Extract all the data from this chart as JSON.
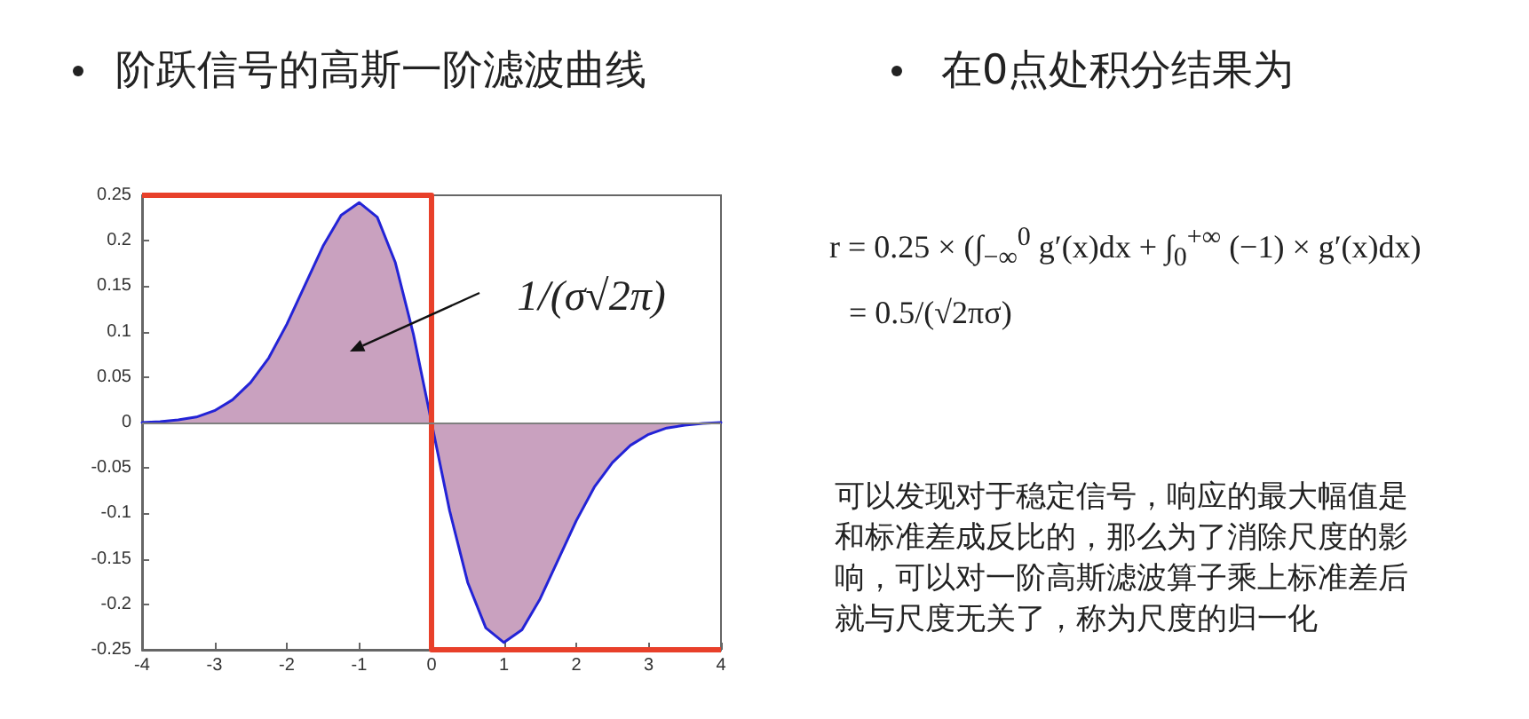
{
  "chart_data": {
    "type": "line",
    "title": "阶跃信号的高斯一阶滤波曲线",
    "subtitle": "在0点处积分结果为",
    "x": [
      -4,
      -3.75,
      -3.5,
      -3.25,
      -3,
      -2.75,
      -2.5,
      -2.25,
      -2,
      -1.75,
      -1.5,
      -1.25,
      -1,
      -0.75,
      -0.5,
      -0.25,
      0,
      0.25,
      0.5,
      0.75,
      1,
      1.25,
      1.5,
      1.75,
      2,
      2.25,
      2.5,
      2.75,
      3,
      3.25,
      3.5,
      3.75,
      4
    ],
    "series": [
      {
        "type": "area",
        "color": "#c9a1bf",
        "x": [
          -4,
          -3.75,
          -3.5,
          -3.25,
          -3,
          -2.75,
          -2.5,
          -2.25,
          -2,
          -1.75,
          -1.5,
          -1.25,
          -1,
          -0.75,
          -0.5,
          -0.25,
          0
        ],
        "values": [
          0,
          0.001,
          0.003,
          0.006,
          0.013,
          0.025,
          0.044,
          0.071,
          0.108,
          0.151,
          0.194,
          0.228,
          0.242,
          0.226,
          0.176,
          0.097,
          0
        ]
      },
      {
        "type": "area",
        "color": "#c9a1bf",
        "x": [
          0,
          0.25,
          0.5,
          0.75,
          1,
          1.25,
          1.5,
          1.75,
          2,
          2.25,
          2.5,
          2.75,
          3,
          3.25,
          3.5,
          3.75,
          4
        ],
        "values": [
          0,
          -0.097,
          -0.176,
          -0.226,
          -0.242,
          -0.228,
          -0.194,
          -0.151,
          -0.108,
          -0.071,
          -0.044,
          -0.025,
          -0.013,
          -0.006,
          -0.003,
          -0.001,
          0
        ]
      },
      {
        "type": "line",
        "color": "#2323d6",
        "values": [
          0,
          0.001,
          0.003,
          0.006,
          0.013,
          0.025,
          0.044,
          0.071,
          0.108,
          0.151,
          0.194,
          0.228,
          0.242,
          0.226,
          0.176,
          0.097,
          0,
          -0.097,
          -0.176,
          -0.226,
          -0.242,
          -0.228,
          -0.194,
          -0.151,
          -0.108,
          -0.071,
          -0.044,
          -0.025,
          -0.013,
          -0.006,
          -0.003,
          -0.001,
          0
        ]
      },
      {
        "type": "step",
        "color": "#e8402a",
        "x": [
          -4,
          0,
          4
        ],
        "values": [
          0.25,
          -0.25,
          -0.25
        ]
      }
    ],
    "xlim": [
      -4,
      4
    ],
    "xticks": [
      -4,
      -3,
      -2,
      -1,
      0,
      1,
      2,
      3,
      4
    ],
    "ylim": [
      -0.25,
      0.25
    ],
    "yticks": [
      -0.25,
      -0.2,
      -0.15,
      -0.1,
      -0.05,
      0,
      0.05,
      0.1,
      0.15,
      0.2,
      0.25
    ],
    "grid": false,
    "ref_lines": [
      {
        "axis": "y",
        "value": 0,
        "color": "#7f7f7f"
      }
    ],
    "annotations": [
      "1/(σ√2π)",
      "r = 0.25 × (∫$_{−∞}$$^{0}$ g′(x)dx + ∫$_{0}$$^{+∞}$ (−1) × g′(x)dx)",
      "= 0.5/(√2πσ)",
      "可以发现对于稳定信号，响应的最大幅值是和标准差成反比的，那么为了消除尺度的影响，可以对一阶高斯滤波算子乘上标准差后就与尺度无关了，称为尺度的归一化"
    ]
  }
}
